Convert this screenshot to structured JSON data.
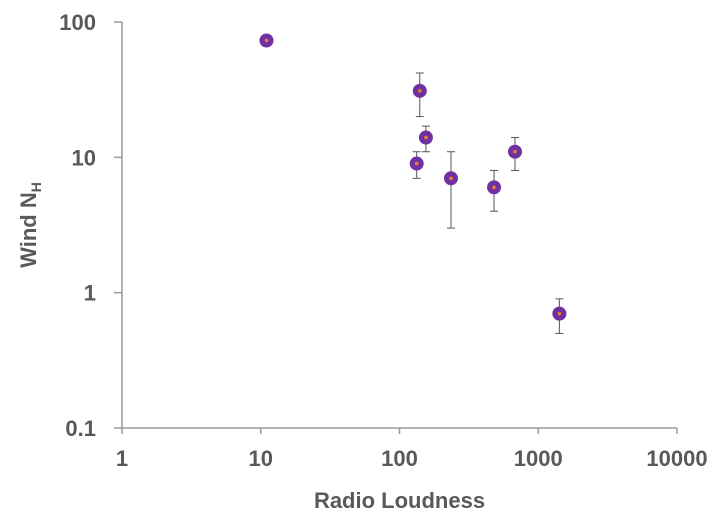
{
  "chart_data": {
    "type": "scatter",
    "xlabel": "Radio Loudness",
    "ylabel_main": "Wind N",
    "ylabel_sub": "H",
    "x_scale": "log",
    "y_scale": "log",
    "xlim": [
      1,
      10000
    ],
    "ylim": [
      0.1,
      100
    ],
    "x_ticks": [
      1,
      10,
      100,
      1000,
      10000
    ],
    "y_ticks": [
      0.1,
      1,
      10,
      100
    ],
    "x_tick_labels": [
      "1",
      "10",
      "100",
      "1000",
      "10000"
    ],
    "y_tick_labels": [
      "0.1",
      "1",
      "10",
      "100"
    ],
    "grid": false,
    "legend": "none",
    "marker_color": "#7030A0",
    "marker_center_color": "#ED7D31",
    "points": [
      {
        "x": 11,
        "y": 73,
        "y_low": null,
        "y_high": null
      },
      {
        "x": 140,
        "y": 31,
        "y_low": 20,
        "y_high": 42
      },
      {
        "x": 155,
        "y": 14,
        "y_low": 11,
        "y_high": 17
      },
      {
        "x": 133,
        "y": 9,
        "y_low": 7,
        "y_high": 11
      },
      {
        "x": 235,
        "y": 7,
        "y_low": 3,
        "y_high": 11
      },
      {
        "x": 480,
        "y": 6,
        "y_low": 4,
        "y_high": 8
      },
      {
        "x": 680,
        "y": 11,
        "y_low": 8,
        "y_high": 14
      },
      {
        "x": 1420,
        "y": 0.7,
        "y_low": 0.5,
        "y_high": 0.9
      }
    ]
  }
}
